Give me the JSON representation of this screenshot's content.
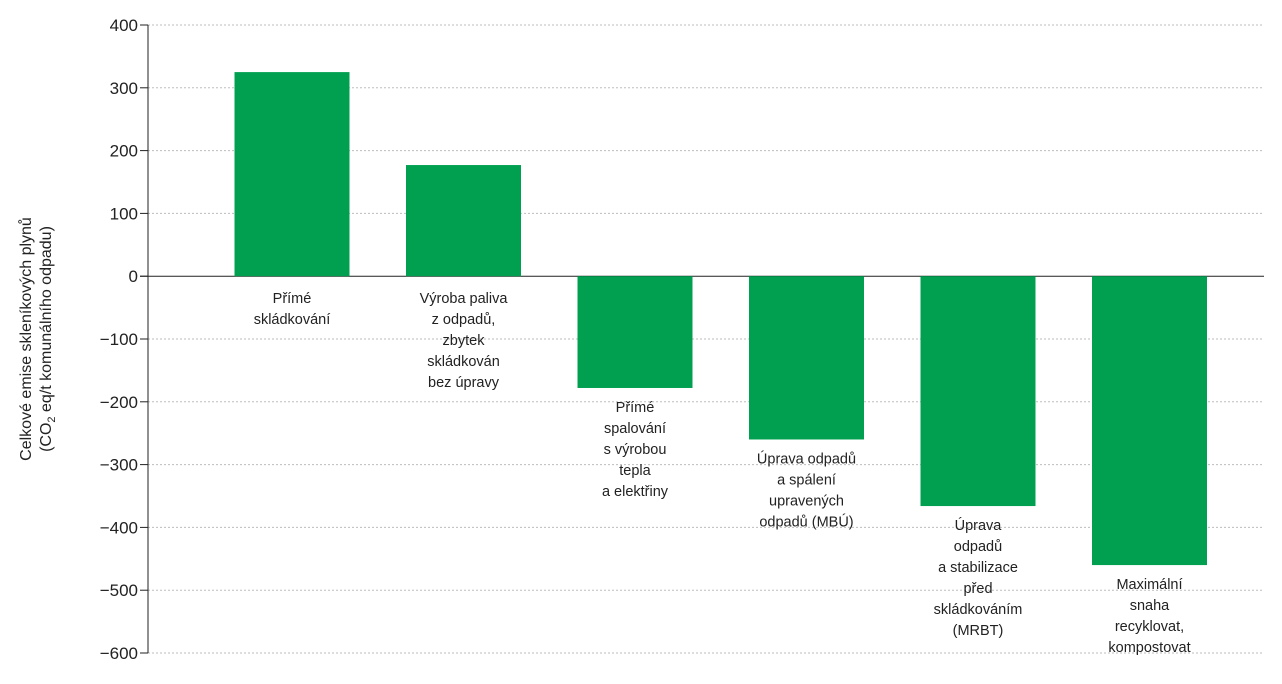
{
  "chart_data": {
    "type": "bar",
    "ylabel_line1": "Celkové emise skleníkových plynů",
    "ylabel_line2_prefix": "(CO",
    "ylabel_line2_sub": "2",
    "ylabel_line2_suffix": " eq/t komunálního odpadu)",
    "ylim": [
      -600,
      400
    ],
    "yticks": [
      {
        "value": 400,
        "label": "400"
      },
      {
        "value": 300,
        "label": "300"
      },
      {
        "value": 200,
        "label": "200"
      },
      {
        "value": 100,
        "label": "100"
      },
      {
        "value": 0,
        "label": "0"
      },
      {
        "value": -100,
        "label": "−100"
      },
      {
        "value": -200,
        "label": "−200"
      },
      {
        "value": -300,
        "label": "−300"
      },
      {
        "value": -400,
        "label": "−400"
      },
      {
        "value": -500,
        "label": "−500"
      },
      {
        "value": -600,
        "label": "−600"
      }
    ],
    "grid": true,
    "bar_color": "#00a050",
    "categories": [
      [
        "Přímé",
        "skládkování"
      ],
      [
        "Výroba paliva",
        "z odpadů,",
        "zbytek",
        "skládkován",
        "bez úpravy"
      ],
      [
        "Přímé",
        "spalování",
        "s výrobou",
        "tepla",
        "a elektřiny"
      ],
      [
        "Úprava odpadů",
        "a spálení",
        "upravených",
        "odpadů (MBÚ)"
      ],
      [
        "Úprava",
        "odpadů",
        "a stabilizace",
        "před",
        "skládkováním",
        "(MRBT)"
      ],
      [
        "Maximální",
        "snaha",
        "recyklovat,",
        "kompostovat"
      ]
    ],
    "values": [
      325,
      177,
      -178,
      -260,
      -366,
      -460
    ]
  }
}
